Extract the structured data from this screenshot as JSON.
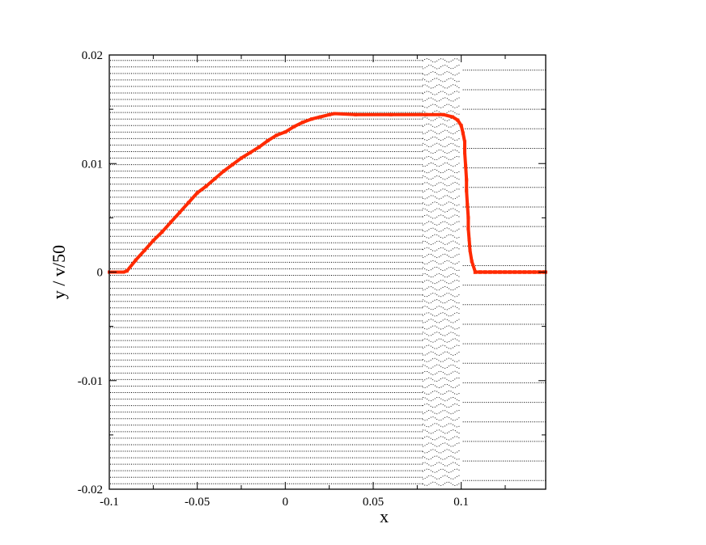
{
  "chart_data": {
    "type": "scatter",
    "title": "",
    "xlabel": "x",
    "ylabel": "y  /  v/50",
    "xlim": [
      -0.1,
      0.148
    ],
    "ylim": [
      -0.02,
      0.02
    ],
    "x_ticks": [
      -0.1,
      -0.05,
      0,
      0.05,
      0.1
    ],
    "x_tick_labels": [
      "-0.1",
      "-0.05",
      "0",
      "0.05",
      "0.1"
    ],
    "y_ticks": [
      -0.02,
      -0.01,
      0,
      0.01,
      0.02
    ],
    "y_tick_labels": [
      "-0.02",
      "-0.01",
      "0",
      "0.01",
      "0.02"
    ],
    "grid": false,
    "legend": "none",
    "colors": {
      "particles": "#000000",
      "velocity": "#ff2a00"
    },
    "particle_rows": {
      "y_min": -0.0195,
      "y_max": 0.0195,
      "row_spacing": 0.0006,
      "x_start": -0.1,
      "compressed_region": [
        0.078,
        0.1
      ],
      "post_shock_x_end": 0.148,
      "post_shock_row_spacing": 0.0018
    },
    "series": [
      {
        "x": [
          -0.1,
          -0.092,
          -0.09,
          -0.085,
          -0.08,
          -0.075,
          -0.07,
          -0.065,
          -0.06,
          -0.055,
          -0.05,
          -0.045,
          -0.04,
          -0.035,
          -0.03,
          -0.025,
          -0.02,
          -0.015,
          -0.01,
          -0.005,
          0.0,
          0.005,
          0.01,
          0.015,
          0.02,
          0.025,
          0.028,
          0.04,
          0.06,
          0.08,
          0.09,
          0.095,
          0.098,
          0.1,
          0.101,
          0.102,
          0.102,
          0.1025,
          0.103,
          0.103,
          0.1035,
          0.104,
          0.104,
          0.1045,
          0.105,
          0.106,
          0.108,
          0.12,
          0.135,
          0.148
        ],
        "y": [
          0.0,
          0.0,
          0.0001,
          0.0011,
          0.002,
          0.0029,
          0.0037,
          0.0046,
          0.0055,
          0.0064,
          0.0073,
          0.0079,
          0.0086,
          0.0093,
          0.0099,
          0.0105,
          0.011,
          0.0115,
          0.0121,
          0.0126,
          0.0129,
          0.0134,
          0.0138,
          0.0141,
          0.0143,
          0.0145,
          0.0146,
          0.0145,
          0.0145,
          0.0145,
          0.0145,
          0.0143,
          0.014,
          0.0135,
          0.0128,
          0.012,
          0.011,
          0.0098,
          0.0085,
          0.0075,
          0.0062,
          0.005,
          0.004,
          0.003,
          0.002,
          0.001,
          0.0,
          0.0,
          0.0,
          0.0
        ]
      }
    ]
  }
}
